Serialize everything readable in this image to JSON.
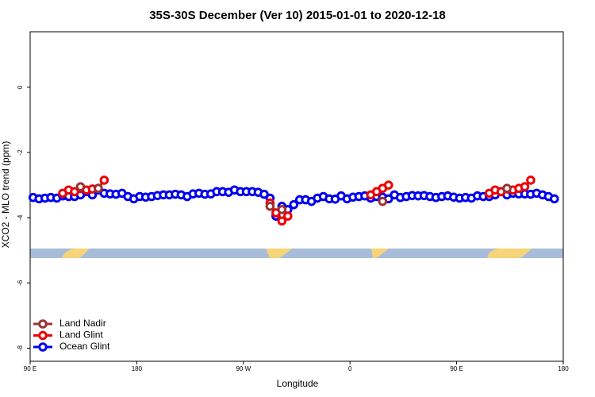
{
  "chart_data": {
    "type": "line",
    "title": "35S-30S December (Ver 10)   2015-01-01 to 2020-12-18",
    "x_label": "Longitude",
    "y_label": "XCO2 - MLO trend (ppm)",
    "xlim": [
      90,
      540
    ],
    "xticks": [
      {
        "value": 90,
        "label": "90 E"
      },
      180,
      {
        "value": 270,
        "label": "90 W"
      },
      {
        "value": 360,
        "label": "0"
      },
      {
        "value": 450,
        "label": "90 E"
      },
      {
        "value": 540,
        "label": "180"
      }
    ],
    "ylim": [
      -8.4,
      1.7
    ],
    "yticks": [
      0,
      -2,
      -4,
      -6,
      -8
    ],
    "legend": "bottom-left",
    "series": [
      {
        "name": "Ocean Glint",
        "color": "#0000ee",
        "x": [
          92.5,
          97.5,
          102.5,
          107.5,
          112.5,
          117.5,
          122.5,
          127.5,
          132.5,
          137.5,
          142.5,
          147.5,
          152.5,
          157.5,
          162.5,
          167.5,
          172.5,
          177.5,
          182.5,
          187.5,
          192.5,
          197.5,
          202.5,
          207.5,
          212.5,
          217.5,
          222.5,
          227.5,
          232.5,
          237.5,
          242.5,
          247.5,
          252.5,
          257.5,
          262.5,
          267.5,
          272.5,
          277.5,
          282.5,
          287.5,
          292.5,
          297.5,
          302.5,
          307.5,
          312.5,
          317.5,
          322.5,
          327.5,
          332.5,
          337.5,
          342.5,
          347.5,
          352.5,
          357.5,
          362.5,
          367.5,
          372.5,
          377.5,
          382.5,
          387.5,
          392.5,
          397.5,
          402.5,
          407.5,
          412.5,
          417.5,
          422.5,
          427.5,
          432.5,
          437.5,
          442.5,
          447.5,
          452.5,
          457.5,
          462.5,
          467.5,
          472.5,
          477.5,
          482.5,
          487.5,
          492.5,
          497.5,
          502.5,
          507.5,
          512.5,
          517.5,
          522.5,
          527.5,
          532.5
        ],
        "values": [
          -3.38,
          -3.42,
          -3.4,
          -3.38,
          -3.4,
          -3.33,
          -3.35,
          -3.35,
          -3.3,
          -3.2,
          -3.3,
          -3.15,
          -3.25,
          -3.27,
          -3.28,
          -3.25,
          -3.35,
          -3.42,
          -3.35,
          -3.37,
          -3.35,
          -3.32,
          -3.3,
          -3.3,
          -3.28,
          -3.3,
          -3.35,
          -3.27,
          -3.25,
          -3.28,
          -3.27,
          -3.2,
          -3.2,
          -3.22,
          -3.15,
          -3.2,
          -3.2,
          -3.2,
          -3.22,
          -3.28,
          -3.4,
          -3.95,
          -3.65,
          -3.75,
          -3.6,
          -3.45,
          -3.45,
          -3.5,
          -3.4,
          -3.35,
          -3.42,
          -3.43,
          -3.33,
          -3.42,
          -3.37,
          -3.35,
          -3.33,
          -3.4,
          -3.35,
          -3.37,
          -3.42,
          -3.3,
          -3.38,
          -3.35,
          -3.32,
          -3.33,
          -3.32,
          -3.35,
          -3.38,
          -3.35,
          -3.33,
          -3.37,
          -3.4,
          -3.38,
          -3.4,
          -3.33,
          -3.35,
          -3.35,
          -3.3,
          -3.2,
          -3.3,
          -3.25,
          -3.27,
          -3.27,
          -3.28,
          -3.25,
          -3.3,
          -3.35,
          -3.42
        ]
      },
      {
        "name": "Land Glint",
        "color": "#ee0000",
        "x": [
          117.5,
          122.5,
          127.5,
          132.5,
          137.5,
          142.5,
          147.5,
          152.5,
          157.5,
          292.5,
          297.5,
          302.5,
          307.5,
          312.5,
          377.5,
          382.5,
          387.5,
          392.5,
          397.5,
          477.5,
          482.5,
          487.5,
          492.5,
          497.5,
          502.5,
          507.5,
          512.5
        ],
        "values": [
          -3.25,
          -3.15,
          -3.2,
          -3.1,
          -3.15,
          -3.12,
          -3.1,
          -2.85,
          null,
          -3.55,
          -3.85,
          -4.1,
          -3.95,
          null,
          -3.3,
          -3.2,
          -3.1,
          -3.0,
          null,
          -3.25,
          -3.15,
          -3.2,
          -3.12,
          -3.15,
          -3.1,
          -3.05,
          -2.85
        ]
      },
      {
        "name": "Land Nadir",
        "color": "#993333",
        "x": [
          132.5,
          137.5,
          147.5,
          152.5,
          292.5,
          297.5,
          302.5,
          307.5,
          387.5,
          392.5,
          492.5
        ],
        "values": [
          -3.05,
          null,
          -3.1,
          null,
          -3.65,
          null,
          -3.75,
          null,
          -3.5,
          null,
          -3.1
        ]
      }
    ]
  }
}
